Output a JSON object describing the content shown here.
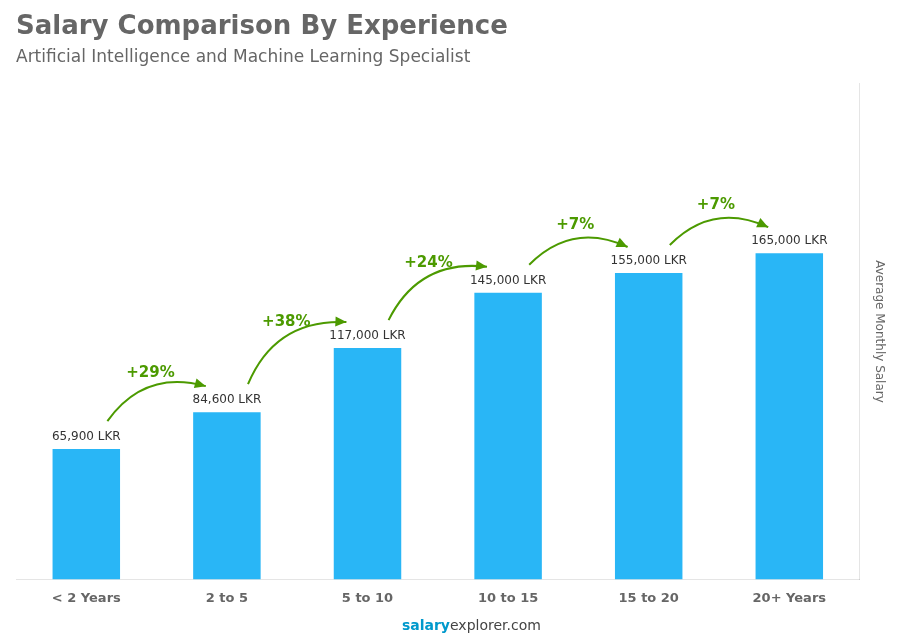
{
  "chart_data": {
    "type": "bar",
    "title": "Salary Comparison By Experience",
    "subtitle": "Artificial Intelligence and Machine Learning Specialist",
    "ylabel": "Average Monthly Salary",
    "categories": [
      "< 2 Years",
      "2 to 5",
      "5 to 10",
      "10 to 15",
      "15 to 20",
      "20+ Years"
    ],
    "values": [
      65900,
      84600,
      117000,
      145000,
      155000,
      165000
    ],
    "value_labels": [
      "65,900 LKR",
      "84,600 LKR",
      "117,000 LKR",
      "145,000 LKR",
      "155,000 LKR",
      "165,000 LKR"
    ],
    "data_labels": true,
    "color": "#29b6f6",
    "ylim": [
      0,
      250800
    ],
    "yticks": [],
    "grid": false,
    "tick_labels": "x",
    "annotations": [
      {
        "text": "+29%",
        "from": "< 2 Years",
        "to": "2 to 5"
      },
      {
        "text": "+38%",
        "from": "2 to 5",
        "to": "5 to 10"
      },
      {
        "text": "+24%",
        "from": "5 to 10",
        "to": "10 to 15"
      },
      {
        "text": "+7%",
        "from": "10 to 15",
        "to": "15 to 20"
      },
      {
        "text": "+7%",
        "from": "15 to 20",
        "to": "20+ Years"
      }
    ],
    "watermark": [
      "salary",
      "explorer.com"
    ]
  }
}
